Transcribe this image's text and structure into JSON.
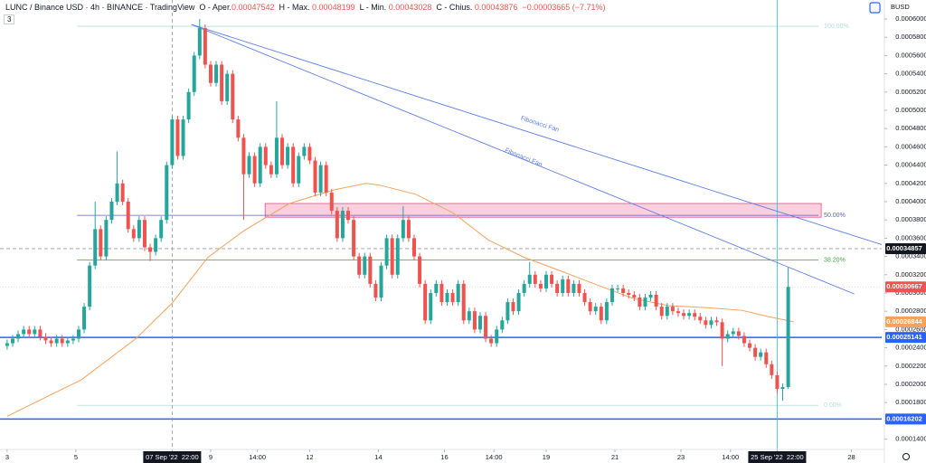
{
  "header": {
    "symbol": "LUNC / Binance USD · 4h · BINANCE · TradingView",
    "indicators": "3",
    "items": [
      {
        "label": "O - Aper.",
        "value": "0.00047542"
      },
      {
        "label": "H - Max.",
        "value": "0.00048199"
      },
      {
        "label": "L - Min.",
        "value": "0.00043028"
      },
      {
        "label": "C - Chius.",
        "value": "0.00043876"
      }
    ],
    "change": "−0.00003665 (−7.71%)",
    "currency": "BUSD"
  },
  "chart_data": {
    "type": "candlestick",
    "up_color": "#26a69a",
    "down_color": "#ef5350",
    "grid": false,
    "xlim": [
      -1.3,
      159
    ],
    "ylim": [
      0.0001287,
      0.0006208
    ],
    "xticks": [
      {
        "value": 0,
        "label": "3"
      },
      {
        "value": 12.5,
        "label": "5"
      },
      {
        "value": 30,
        "label": "07 Sep '22  22:00",
        "highlight": true,
        "line_color": "#9598a1",
        "line_style": "dashed"
      },
      {
        "value": 37,
        "label": "9"
      },
      {
        "value": 45.5,
        "label": "14:00"
      },
      {
        "value": 55,
        "label": "12"
      },
      {
        "value": 67.5,
        "label": "14"
      },
      {
        "value": 79.5,
        "label": "16"
      },
      {
        "value": 88.5,
        "label": "14:00"
      },
      {
        "value": 98,
        "label": "19"
      },
      {
        "value": 110.5,
        "label": "21"
      },
      {
        "value": 122.5,
        "label": "23"
      },
      {
        "value": 131.5,
        "label": "14:00"
      },
      {
        "value": 140,
        "label": "25 Sep '22  22:00",
        "highlight": true,
        "line_color": "#26c6da",
        "line_style": "solid"
      },
      {
        "value": 153.5,
        "label": "28"
      }
    ],
    "yticks": [
      {
        "value": 0.00014,
        "label": "0.00014000"
      },
      {
        "value": 0.00016,
        "label": "0.00016000"
      },
      {
        "value": 0.00018,
        "label": "0.00018000"
      },
      {
        "value": 0.0002,
        "label": "0.00020000"
      },
      {
        "value": 0.00022,
        "label": "0.00022000"
      },
      {
        "value": 0.00024,
        "label": "0.00024000"
      },
      {
        "value": 0.00026,
        "label": "0.00026000"
      },
      {
        "value": 0.00028,
        "label": "0.00028000"
      },
      {
        "value": 0.0003,
        "label": "0.00030000"
      },
      {
        "value": 0.00032,
        "label": "0.00032000"
      },
      {
        "value": 0.00034,
        "label": "0.00034000"
      },
      {
        "value": 0.00036,
        "label": "0.00036000"
      },
      {
        "value": 0.00038,
        "label": "0.00038000"
      },
      {
        "value": 0.0004,
        "label": "0.00040000"
      },
      {
        "value": 0.00042,
        "label": "0.00042000"
      },
      {
        "value": 0.00044,
        "label": "0.00044000"
      },
      {
        "value": 0.00046,
        "label": "0.00046000"
      },
      {
        "value": 0.00048,
        "label": "0.00048000"
      },
      {
        "value": 0.0005,
        "label": "0.00050000"
      },
      {
        "value": 0.00052,
        "label": "0.00052000"
      },
      {
        "value": 0.00054,
        "label": "0.00054000"
      },
      {
        "value": 0.00056,
        "label": "0.00056000"
      },
      {
        "value": 0.00058,
        "label": "0.00058000"
      },
      {
        "value": 0.0006,
        "label": "0.00060000"
      }
    ],
    "x": [
      0,
      1,
      2,
      3,
      4,
      5,
      6,
      7,
      8,
      9,
      10,
      11,
      12,
      13,
      14,
      15,
      16,
      17,
      18,
      19,
      20,
      21,
      22,
      23,
      24,
      25,
      26,
      27,
      28,
      29,
      30,
      31,
      32,
      33,
      34,
      35,
      36,
      37,
      38,
      39,
      40,
      41,
      42,
      43,
      44,
      45,
      46,
      47,
      48,
      49,
      50,
      51,
      52,
      53,
      54,
      55,
      56,
      57,
      58,
      59,
      60,
      61,
      62,
      63,
      64,
      65,
      66,
      67,
      68,
      69,
      70,
      71,
      72,
      73,
      74,
      75,
      76,
      77,
      78,
      79,
      80,
      81,
      82,
      83,
      84,
      85,
      86,
      87,
      88,
      89,
      90,
      91,
      92,
      93,
      94,
      95,
      96,
      97,
      98,
      99,
      100,
      101,
      102,
      103,
      104,
      105,
      106,
      107,
      108,
      109,
      110,
      111,
      112,
      113,
      114,
      115,
      116,
      117,
      118,
      119,
      120,
      121,
      122,
      123,
      124,
      125,
      126,
      127,
      128,
      129,
      130,
      131,
      132,
      133,
      134,
      135,
      136,
      137,
      138,
      139,
      140,
      141,
      142
    ],
    "open": [
      0.000242,
      0.000245,
      0.00025,
      0.000255,
      0.00026,
      0.000255,
      0.00026,
      0.000252,
      0.000248,
      0.000245,
      0.00025,
      0.000245,
      0.000248,
      0.00025,
      0.00026,
      0.000285,
      0.00033,
      0.00037,
      0.00034,
      0.00038,
      0.0004,
      0.00042,
      0.0004,
      0.00037,
      0.00036,
      0.00038,
      0.00035,
      0.000345,
      0.00036,
      0.00038,
      0.00044,
      0.00049,
      0.00045,
      0.00049,
      0.00052,
      0.00056,
      0.00059,
      0.00055,
      0.00053,
      0.00055,
      0.00051,
      0.00054,
      0.00049,
      0.00047,
      0.00043,
      0.00045,
      0.00042,
      0.00046,
      0.00044,
      0.00043,
      0.00047,
      0.00044,
      0.00046,
      0.00042,
      0.00045,
      0.00046,
      0.000445,
      0.00041,
      0.00044,
      0.00041,
      0.00039,
      0.00036,
      0.00039,
      0.00038,
      0.00034,
      0.00032,
      0.00034,
      0.00031,
      0.000295,
      0.00033,
      0.00036,
      0.00032,
      0.00036,
      0.00038,
      0.00036,
      0.00034,
      0.00031,
      0.00027,
      0.0003,
      0.00031,
      0.00029,
      0.0003,
      0.00029,
      0.00031,
      0.00027,
      0.00028,
      0.00026,
      0.000275,
      0.00025,
      0.000245,
      0.00026,
      0.00027,
      0.00029,
      0.00028,
      0.0003,
      0.00031,
      0.00032,
      0.00031,
      0.000305,
      0.00032,
      0.00031,
      0.0003,
      0.000315,
      0.0003,
      0.00031,
      0.0003,
      0.00029,
      0.00028,
      0.000285,
      0.00027,
      0.00029,
      0.000305,
      0.000305,
      0.0003,
      0.000298,
      0.000295,
      0.000285,
      0.000295,
      0.000298,
      0.000285,
      0.000275,
      0.000285,
      0.00028,
      0.000278,
      0.000275,
      0.000278,
      0.000274,
      0.00027,
      0.000265,
      0.00027,
      0.000268,
      0.00025,
      0.000255,
      0.000258,
      0.000253,
      0.000245,
      0.00024,
      0.00023,
      0.000235,
      0.000222,
      0.00021,
      0.000195,
      0.000197
    ],
    "high": [
      0.000249,
      0.000254,
      0.000259,
      0.000264,
      0.000264,
      0.000264,
      0.000264,
      0.000256,
      0.000252,
      0.000254,
      0.000254,
      0.000252,
      0.000254,
      0.000264,
      0.000289,
      0.000334,
      0.0004,
      0.000374,
      0.000384,
      0.000404,
      0.000455,
      0.000424,
      0.000404,
      0.000374,
      0.000384,
      0.000384,
      0.000354,
      0.000364,
      0.000384,
      0.000444,
      0.000494,
      0.000494,
      0.000494,
      0.000524,
      0.000564,
      0.0006,
      0.000594,
      0.000554,
      0.000554,
      0.000554,
      0.000544,
      0.000544,
      0.000494,
      0.000474,
      0.000454,
      0.000454,
      0.000464,
      0.000464,
      0.000444,
      0.00051,
      0.000474,
      0.000464,
      0.000464,
      0.000454,
      0.000464,
      0.000464,
      0.000449,
      0.000444,
      0.000444,
      0.000414,
      0.000394,
      0.000394,
      0.000394,
      0.000384,
      0.000344,
      0.000344,
      0.000344,
      0.000314,
      0.000334,
      0.000364,
      0.000364,
      0.000364,
      0.000395,
      0.000384,
      0.000364,
      0.000344,
      0.000314,
      0.000304,
      0.000314,
      0.000314,
      0.000304,
      0.000304,
      0.000314,
      0.000314,
      0.000284,
      0.000284,
      0.000279,
      0.000279,
      0.000254,
      0.000264,
      0.000274,
      0.000294,
      0.000294,
      0.000304,
      0.000314,
      0.000334,
      0.000324,
      0.000314,
      0.000324,
      0.000324,
      0.000314,
      0.000319,
      0.000319,
      0.000314,
      0.000314,
      0.000304,
      0.000294,
      0.000289,
      0.000289,
      0.000294,
      0.000309,
      0.000309,
      0.000309,
      0.000304,
      0.000302,
      0.000299,
      0.000299,
      0.000302,
      0.000302,
      0.000289,
      0.000289,
      0.000289,
      0.000284,
      0.000282,
      0.000282,
      0.000282,
      0.000278,
      0.000274,
      0.000274,
      0.000274,
      0.000272,
      0.000259,
      0.000262,
      0.000262,
      0.000257,
      0.000249,
      0.000244,
      0.000239,
      0.000239,
      0.000226,
      0.000214,
      0.000201,
      0.000328
    ],
    "low": [
      0.000238,
      0.000241,
      0.000246,
      0.000251,
      0.000251,
      0.000251,
      0.000248,
      0.000244,
      0.000241,
      0.000241,
      0.000241,
      0.000241,
      0.000244,
      0.000246,
      0.000256,
      0.000281,
      0.000326,
      0.000336,
      0.000336,
      0.000376,
      0.000396,
      0.000396,
      0.000366,
      0.000356,
      0.000356,
      0.000346,
      0.000335,
      0.000341,
      0.000356,
      0.000376,
      0.000436,
      0.000446,
      0.000446,
      0.000486,
      0.000516,
      0.000556,
      0.000546,
      0.000526,
      0.000526,
      0.000506,
      0.000506,
      0.000486,
      0.000466,
      0.00038,
      0.000426,
      0.000416,
      0.000416,
      0.000436,
      0.000426,
      0.000426,
      0.000436,
      0.000436,
      0.000416,
      0.000416,
      0.000446,
      0.000441,
      0.000406,
      0.000406,
      0.000406,
      0.000386,
      0.000356,
      0.000356,
      0.000376,
      0.000336,
      0.000316,
      0.000316,
      0.000306,
      0.000291,
      0.000291,
      0.000326,
      0.000316,
      0.000316,
      0.000356,
      0.000356,
      0.000336,
      0.000306,
      0.000266,
      0.000266,
      0.000296,
      0.000286,
      0.000286,
      0.000286,
      0.000286,
      0.000266,
      0.000266,
      0.000256,
      0.000256,
      0.000246,
      0.000241,
      0.000241,
      0.000256,
      0.000266,
      0.000276,
      0.000276,
      0.000296,
      0.000306,
      0.000306,
      0.000301,
      0.000301,
      0.000306,
      0.000296,
      0.000296,
      0.000296,
      0.000296,
      0.000296,
      0.000286,
      0.000276,
      0.000276,
      0.000266,
      0.000266,
      0.000286,
      0.000301,
      0.000296,
      0.000294,
      0.000291,
      0.000281,
      0.000281,
      0.000291,
      0.000281,
      0.000271,
      0.000271,
      0.000276,
      0.000274,
      0.000271,
      0.000271,
      0.00027,
      0.000266,
      0.000261,
      0.000261,
      0.000264,
      0.00022,
      0.000246,
      0.000251,
      0.000249,
      0.000241,
      0.000236,
      0.000226,
      0.000226,
      0.000218,
      0.000206,
      0.00019,
      0.000182,
      0.000195
    ],
    "close": [
      0.000245,
      0.00025,
      0.000255,
      0.00026,
      0.000255,
      0.00026,
      0.000252,
      0.000248,
      0.000245,
      0.00025,
      0.000245,
      0.000248,
      0.00025,
      0.00026,
      0.000285,
      0.00033,
      0.00037,
      0.00034,
      0.00038,
      0.0004,
      0.00042,
      0.0004,
      0.00037,
      0.00036,
      0.00038,
      0.00035,
      0.000345,
      0.00036,
      0.00038,
      0.00044,
      0.00049,
      0.00045,
      0.00049,
      0.00052,
      0.00056,
      0.00059,
      0.00055,
      0.00053,
      0.00055,
      0.00051,
      0.00054,
      0.00049,
      0.00047,
      0.00043,
      0.00045,
      0.00042,
      0.00046,
      0.00044,
      0.00043,
      0.00047,
      0.00044,
      0.00046,
      0.00042,
      0.00045,
      0.00046,
      0.000445,
      0.00041,
      0.00044,
      0.00041,
      0.00039,
      0.00036,
      0.00039,
      0.00038,
      0.00034,
      0.00032,
      0.00034,
      0.00031,
      0.000295,
      0.00033,
      0.00036,
      0.00032,
      0.00036,
      0.00038,
      0.00036,
      0.00034,
      0.00031,
      0.00027,
      0.0003,
      0.00031,
      0.00029,
      0.0003,
      0.00029,
      0.00031,
      0.00027,
      0.00028,
      0.00026,
      0.000275,
      0.00025,
      0.000245,
      0.00026,
      0.00027,
      0.00029,
      0.00028,
      0.0003,
      0.00031,
      0.00032,
      0.00031,
      0.000305,
      0.00032,
      0.00031,
      0.0003,
      0.000315,
      0.0003,
      0.00031,
      0.0003,
      0.00029,
      0.00028,
      0.000285,
      0.00027,
      0.00029,
      0.000305,
      0.000305,
      0.0003,
      0.000298,
      0.000295,
      0.000285,
      0.000295,
      0.000298,
      0.000285,
      0.000275,
      0.000285,
      0.00028,
      0.000278,
      0.000275,
      0.000278,
      0.000274,
      0.00027,
      0.000265,
      0.00027,
      0.000268,
      0.00025,
      0.000255,
      0.000258,
      0.000253,
      0.000245,
      0.00024,
      0.00023,
      0.000235,
      0.000222,
      0.00021,
      0.000195,
      0.000197,
      0.00030667
    ],
    "ma": {
      "color": "#f5a25d",
      "x": [
        0,
        13.5,
        23.4,
        30,
        36.5,
        43,
        51.3,
        59.5,
        65.3,
        67.8,
        74.3,
        81,
        87.5,
        94,
        100.7,
        107.2,
        113.8,
        120.4,
        127,
        133.6,
        138.5,
        143
      ],
      "values": [
        0.000165,
        0.000205,
        0.00025,
        0.000289,
        0.000339,
        0.000368,
        0.000398,
        0.000413,
        0.00042,
        0.000418,
        0.000408,
        0.000388,
        0.000358,
        0.000339,
        0.000324,
        0.000309,
        0.000294,
        0.000286,
        0.000284,
        0.000281,
        0.000274,
        0.00026844
      ]
    },
    "fib_x": [
      12.7,
      147.5
    ],
    "fib_levels": [
      {
        "label": "100.00%",
        "value": 0.000592,
        "color": "#b2dfdb"
      },
      {
        "label": "50.00%",
        "value": 0.000385,
        "color": "#5b5fc7"
      },
      {
        "label": "38.20%",
        "value": 0.000336,
        "color": "#43a047"
      },
      {
        "label": "0.00%",
        "value": 0.000177,
        "color": "#b2dfdb"
      }
    ],
    "zone": {
      "x": [
        46.9,
        148
      ],
      "y": [
        0.000383,
        0.000398
      ],
      "color": "#f8bbd0"
    },
    "fan_lines": [
      {
        "label": "Fibonacci Fan",
        "color": "#5b7ee5",
        "x": [
          33.5,
          159
        ],
        "y": [
          0.000594,
          0.000353
        ]
      },
      {
        "label": "Fibonacci Fan",
        "color": "#5b7ee5",
        "x": [
          33.5,
          154
        ],
        "y": [
          0.000594,
          0.000299
        ]
      }
    ],
    "price_labels": [
      {
        "value": 0.00034857,
        "label": "0.00034857",
        "color": "#131722",
        "line_style": "dashed",
        "line_color": "#9598a1"
      },
      {
        "value": 0.00030667,
        "label": "0.00030667",
        "color": "#ef5350",
        "line_style": "dotted",
        "line_color": "#d1d4dc"
      },
      {
        "value": 0.00026844,
        "label": "0.00026844",
        "color": "#f5a25d",
        "line_style": "none",
        "line_color": "#f5a25d"
      },
      {
        "value": 0.00025141,
        "label": "0.00025141",
        "color": "#2962ff",
        "line_style": "solid",
        "line_color": "#2962ff"
      },
      {
        "value": 0.00016202,
        "label": "0.00016202",
        "color": "#2962ff",
        "line_style": "solid",
        "line_color": "#2962ff"
      }
    ]
  }
}
